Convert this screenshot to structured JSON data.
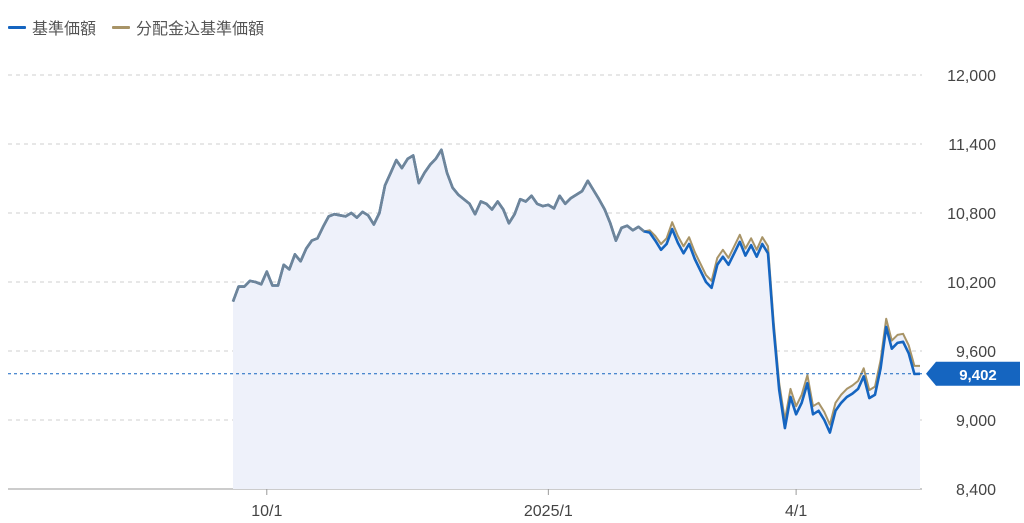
{
  "legend": {
    "items": [
      {
        "label": "基準価額",
        "color": "#1565C0"
      },
      {
        "label": "分配金込基準価額",
        "color": "#A89467"
      }
    ]
  },
  "chart_data": {
    "type": "line",
    "title": "",
    "xlabel": "",
    "ylabel": "",
    "ylim": [
      8400,
      12000
    ],
    "y_ticks": [
      "12,000",
      "11,400",
      "10,800",
      "10,200",
      "9,600",
      "9,000",
      "8,400"
    ],
    "x_ticks": [
      "10/1",
      "2025/1",
      "4/1"
    ],
    "grid": "horizontal dashed",
    "legend_position": "top-left",
    "current_value": 9402,
    "current_value_label": "9,402",
    "series": [
      {
        "name": "基準価額",
        "color": "#1565C0",
        "values": [
          [
            0,
            10030
          ],
          [
            1,
            10160
          ],
          [
            2,
            10160
          ],
          [
            3,
            10210
          ],
          [
            4,
            10200
          ],
          [
            5,
            10180
          ],
          [
            6,
            10290
          ],
          [
            7,
            10170
          ],
          [
            8,
            10170
          ],
          [
            9,
            10350
          ],
          [
            10,
            10310
          ],
          [
            11,
            10440
          ],
          [
            12,
            10380
          ],
          [
            13,
            10490
          ],
          [
            14,
            10560
          ],
          [
            15,
            10580
          ],
          [
            16,
            10680
          ],
          [
            17,
            10770
          ],
          [
            18,
            10790
          ],
          [
            19,
            10780
          ],
          [
            20,
            10770
          ],
          [
            21,
            10800
          ],
          [
            22,
            10760
          ],
          [
            23,
            10810
          ],
          [
            24,
            10780
          ],
          [
            25,
            10700
          ],
          [
            26,
            10800
          ],
          [
            27,
            11040
          ],
          [
            28,
            11150
          ],
          [
            29,
            11260
          ],
          [
            30,
            11190
          ],
          [
            31,
            11270
          ],
          [
            32,
            11300
          ],
          [
            33,
            11060
          ],
          [
            34,
            11150
          ],
          [
            35,
            11220
          ],
          [
            36,
            11270
          ],
          [
            37,
            11350
          ],
          [
            38,
            11150
          ],
          [
            39,
            11020
          ],
          [
            40,
            10960
          ],
          [
            41,
            10920
          ],
          [
            42,
            10880
          ],
          [
            43,
            10790
          ],
          [
            44,
            10900
          ],
          [
            45,
            10880
          ],
          [
            46,
            10830
          ],
          [
            47,
            10900
          ],
          [
            48,
            10830
          ],
          [
            49,
            10710
          ],
          [
            50,
            10790
          ],
          [
            51,
            10920
          ],
          [
            52,
            10900
          ],
          [
            53,
            10950
          ],
          [
            54,
            10880
          ],
          [
            55,
            10860
          ],
          [
            56,
            10870
          ],
          [
            57,
            10840
          ],
          [
            58,
            10950
          ],
          [
            59,
            10880
          ],
          [
            60,
            10930
          ],
          [
            61,
            10960
          ],
          [
            62,
            10990
          ],
          [
            63,
            11080
          ],
          [
            64,
            11000
          ],
          [
            65,
            10920
          ],
          [
            66,
            10830
          ],
          [
            67,
            10710
          ],
          [
            68,
            10560
          ],
          [
            69,
            10670
          ],
          [
            70,
            10690
          ],
          [
            71,
            10650
          ],
          [
            72,
            10680
          ],
          [
            73,
            10640
          ],
          [
            74,
            10630
          ],
          [
            75,
            10560
          ],
          [
            76,
            10480
          ],
          [
            77,
            10530
          ],
          [
            78,
            10660
          ],
          [
            79,
            10540
          ],
          [
            80,
            10450
          ],
          [
            81,
            10530
          ],
          [
            82,
            10400
          ],
          [
            83,
            10300
          ],
          [
            84,
            10200
          ],
          [
            85,
            10150
          ],
          [
            86,
            10350
          ],
          [
            87,
            10420
          ],
          [
            88,
            10350
          ],
          [
            89,
            10450
          ],
          [
            90,
            10550
          ],
          [
            91,
            10430
          ],
          [
            92,
            10520
          ],
          [
            93,
            10420
          ],
          [
            94,
            10530
          ],
          [
            95,
            10450
          ],
          [
            96,
            9800
          ],
          [
            97,
            9260
          ],
          [
            98,
            8930
          ],
          [
            99,
            9200
          ],
          [
            100,
            9050
          ],
          [
            101,
            9150
          ],
          [
            102,
            9320
          ],
          [
            103,
            9050
          ],
          [
            104,
            9080
          ],
          [
            105,
            9000
          ],
          [
            106,
            8890
          ],
          [
            107,
            9080
          ],
          [
            108,
            9150
          ],
          [
            109,
            9200
          ],
          [
            110,
            9230
          ],
          [
            111,
            9270
          ],
          [
            112,
            9380
          ],
          [
            113,
            9190
          ],
          [
            114,
            9220
          ],
          [
            115,
            9450
          ],
          [
            116,
            9810
          ],
          [
            117,
            9620
          ],
          [
            118,
            9670
          ],
          [
            119,
            9680
          ],
          [
            120,
            9580
          ],
          [
            121,
            9400
          ],
          [
            122,
            9402
          ]
        ]
      },
      {
        "name": "分配金込基準価額",
        "color": "#A89467",
        "values": [
          [
            0,
            10030
          ],
          [
            1,
            10160
          ],
          [
            2,
            10160
          ],
          [
            3,
            10210
          ],
          [
            4,
            10200
          ],
          [
            5,
            10180
          ],
          [
            6,
            10290
          ],
          [
            7,
            10170
          ],
          [
            8,
            10170
          ],
          [
            9,
            10350
          ],
          [
            10,
            10310
          ],
          [
            11,
            10440
          ],
          [
            12,
            10380
          ],
          [
            13,
            10490
          ],
          [
            14,
            10560
          ],
          [
            15,
            10580
          ],
          [
            16,
            10680
          ],
          [
            17,
            10770
          ],
          [
            18,
            10790
          ],
          [
            19,
            10780
          ],
          [
            20,
            10770
          ],
          [
            21,
            10800
          ],
          [
            22,
            10760
          ],
          [
            23,
            10810
          ],
          [
            24,
            10780
          ],
          [
            25,
            10700
          ],
          [
            26,
            10800
          ],
          [
            27,
            11040
          ],
          [
            28,
            11150
          ],
          [
            29,
            11260
          ],
          [
            30,
            11190
          ],
          [
            31,
            11270
          ],
          [
            32,
            11300
          ],
          [
            33,
            11060
          ],
          [
            34,
            11150
          ],
          [
            35,
            11220
          ],
          [
            36,
            11270
          ],
          [
            37,
            11350
          ],
          [
            38,
            11150
          ],
          [
            39,
            11020
          ],
          [
            40,
            10960
          ],
          [
            41,
            10920
          ],
          [
            42,
            10880
          ],
          [
            43,
            10790
          ],
          [
            44,
            10900
          ],
          [
            45,
            10880
          ],
          [
            46,
            10830
          ],
          [
            47,
            10900
          ],
          [
            48,
            10830
          ],
          [
            49,
            10710
          ],
          [
            50,
            10790
          ],
          [
            51,
            10920
          ],
          [
            52,
            10900
          ],
          [
            53,
            10950
          ],
          [
            54,
            10880
          ],
          [
            55,
            10860
          ],
          [
            56,
            10870
          ],
          [
            57,
            10840
          ],
          [
            58,
            10950
          ],
          [
            59,
            10880
          ],
          [
            60,
            10930
          ],
          [
            61,
            10960
          ],
          [
            62,
            10990
          ],
          [
            63,
            11080
          ],
          [
            64,
            11000
          ],
          [
            65,
            10920
          ],
          [
            66,
            10830
          ],
          [
            67,
            10710
          ],
          [
            68,
            10560
          ],
          [
            69,
            10670
          ],
          [
            70,
            10690
          ],
          [
            71,
            10650
          ],
          [
            72,
            10680
          ],
          [
            73,
            10640
          ],
          [
            74,
            10650
          ],
          [
            75,
            10600
          ],
          [
            76,
            10530
          ],
          [
            77,
            10580
          ],
          [
            78,
            10720
          ],
          [
            79,
            10600
          ],
          [
            80,
            10510
          ],
          [
            81,
            10590
          ],
          [
            82,
            10460
          ],
          [
            83,
            10360
          ],
          [
            84,
            10260
          ],
          [
            85,
            10210
          ],
          [
            86,
            10410
          ],
          [
            87,
            10480
          ],
          [
            88,
            10410
          ],
          [
            89,
            10510
          ],
          [
            90,
            10610
          ],
          [
            91,
            10490
          ],
          [
            92,
            10580
          ],
          [
            93,
            10480
          ],
          [
            94,
            10590
          ],
          [
            95,
            10510
          ],
          [
            96,
            9860
          ],
          [
            97,
            9320
          ],
          [
            98,
            9000
          ],
          [
            99,
            9270
          ],
          [
            100,
            9120
          ],
          [
            101,
            9220
          ],
          [
            102,
            9390
          ],
          [
            103,
            9120
          ],
          [
            104,
            9150
          ],
          [
            105,
            9070
          ],
          [
            106,
            8960
          ],
          [
            107,
            9150
          ],
          [
            108,
            9220
          ],
          [
            109,
            9270
          ],
          [
            110,
            9300
          ],
          [
            111,
            9340
          ],
          [
            112,
            9450
          ],
          [
            113,
            9260
          ],
          [
            114,
            9290
          ],
          [
            115,
            9520
          ],
          [
            116,
            9880
          ],
          [
            117,
            9690
          ],
          [
            118,
            9740
          ],
          [
            119,
            9750
          ],
          [
            120,
            9650
          ],
          [
            121,
            9470
          ],
          [
            122,
            9470
          ]
        ]
      }
    ],
    "x_tick_positions": [
      6,
      56,
      100
    ]
  }
}
